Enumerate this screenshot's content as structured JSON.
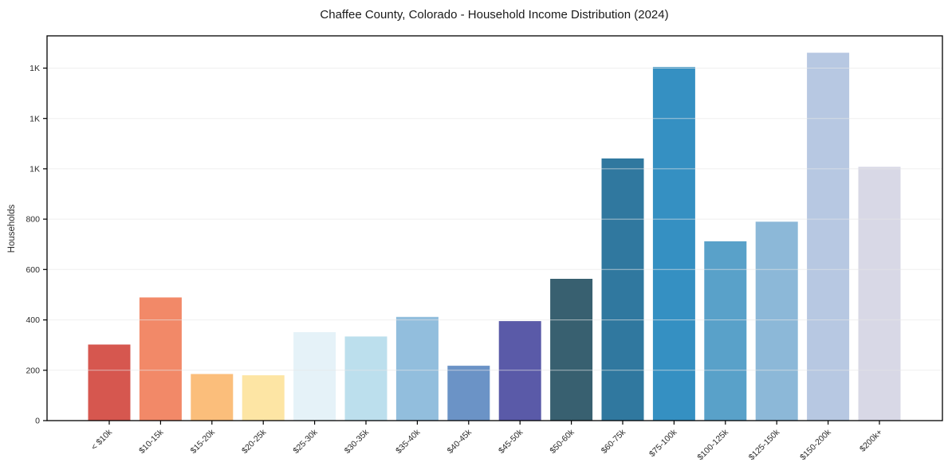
{
  "chart_data": {
    "type": "bar",
    "title": "Chaffee County, Colorado - Household Income Distribution (2024)",
    "xlabel": "",
    "ylabel": "Households",
    "categories": [
      "< $10k",
      "$10-15k",
      "$15-20k",
      "$20-25k",
      "$25-30k",
      "$30-35k",
      "$35-40k",
      "$40-45k",
      "$45-50k",
      "$50-60k",
      "$60-75k",
      "$75-100k",
      "$100-125k",
      "$125-150k",
      "$150-200k",
      "$200k+"
    ],
    "values": [
      302,
      489,
      185,
      180,
      351,
      334,
      412,
      218,
      395,
      563,
      1041,
      1404,
      712,
      790,
      1461,
      1008
    ],
    "bar_colors": [
      "#d6574f",
      "#f28968",
      "#fbbe7b",
      "#fde5a4",
      "#e5f2f8",
      "#bcdfed",
      "#92bedd",
      "#6b93c6",
      "#5a5aa8",
      "#386070",
      "#30789f",
      "#3590c2",
      "#59a1c9",
      "#8cb8d8",
      "#b7c8e2",
      "#d8d8e6"
    ],
    "ylim": [
      0,
      1528
    ],
    "yticks": [
      0,
      200,
      400,
      600,
      800,
      1000,
      1200,
      1400
    ],
    "ytick_labels": [
      "0",
      "200",
      "400",
      "600",
      "800",
      "1K",
      "1K",
      "1K"
    ],
    "xtick_rotation": -45,
    "grid": "horizontal",
    "legend": "none",
    "colors": {
      "background": "#ffffff",
      "title_color": "#1a1a1a",
      "text_color": "#2b2b2b",
      "grid_color": "#e6e6e6",
      "spine_color": "#000000"
    }
  }
}
